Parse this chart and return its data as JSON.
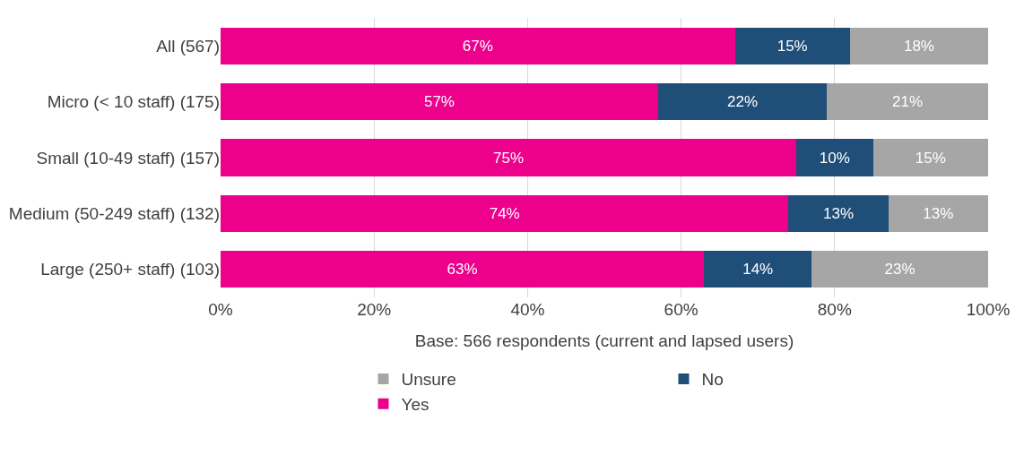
{
  "chart_data": {
    "type": "bar",
    "orientation": "horizontal",
    "stacked": true,
    "categories": [
      "All (567)",
      "Micro (< 10 staff) (175)",
      "Small (10-49 staff) (157)",
      "Medium (50-249 staff) (132)",
      "Large (250+ staff) (103)"
    ],
    "series": [
      {
        "name": "Yes",
        "color": "#ec008c",
        "values": [
          67,
          57,
          75,
          74,
          63
        ],
        "value_labels": [
          "67%",
          "57%",
          "75%",
          "74%",
          "63%"
        ]
      },
      {
        "name": "No",
        "color": "#1f4e79",
        "values": [
          15,
          22,
          10,
          13,
          14
        ],
        "value_labels": [
          "15%",
          "22%",
          "10%",
          "13%",
          "14%"
        ]
      },
      {
        "name": "Unsure",
        "color": "#a6a6a6",
        "values": [
          18,
          21,
          15,
          13,
          23
        ],
        "value_labels": [
          "18%",
          "21%",
          "15%",
          "13%",
          "23%"
        ]
      }
    ],
    "xlabel": "Base: 566 respondents (current and lapsed users)",
    "xlim": [
      0,
      100
    ],
    "xticks": [
      {
        "value": 0,
        "label": "0%"
      },
      {
        "value": 20,
        "label": "20%"
      },
      {
        "value": 40,
        "label": "40%"
      },
      {
        "value": 60,
        "label": "60%"
      },
      {
        "value": 80,
        "label": "80%"
      },
      {
        "value": 100,
        "label": "100%"
      }
    ],
    "grid": "x",
    "legend": "bottom"
  }
}
